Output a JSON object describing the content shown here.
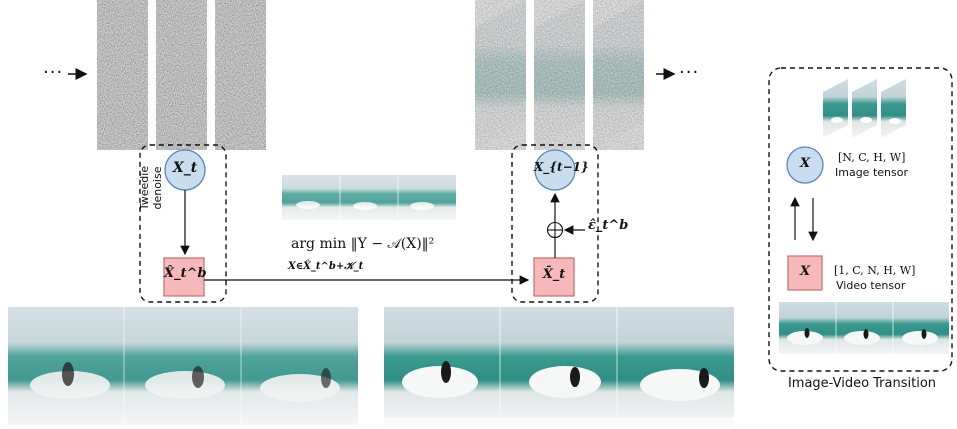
{
  "left_panel": {
    "ellipsis_left": "···",
    "ellipsis_right": "···",
    "node_top_left": "X_t",
    "denoise_label": "Tweedie denoise",
    "node_bottom_left": "X̂_t^b",
    "objective": "arg min  ‖Y − 𝒜(X)‖²",
    "objective_subscript": "X∈X̂_t^b+𝒦_t",
    "node_top_right": "X_{t−1}",
    "noise_term": "ε̂_t^b",
    "node_bottom_right": "X̄_t",
    "oplus": "⊕"
  },
  "transition_panel": {
    "title": "Image-Video Transition",
    "image_node": "X",
    "image_shape": "[N, C, H, W]",
    "image_caption": "Image tensor",
    "video_node": "X",
    "video_shape": "[1, C, N, H, W]",
    "video_caption": "Video tensor"
  },
  "colors": {
    "circle_fill": "#c9ddf0",
    "circle_stroke": "#5a86b8",
    "square_fill": "#f6b8b8",
    "square_stroke": "#c07070",
    "sea": "#2f8e86",
    "sky": "#c8d6db",
    "foam": "#ededee"
  }
}
